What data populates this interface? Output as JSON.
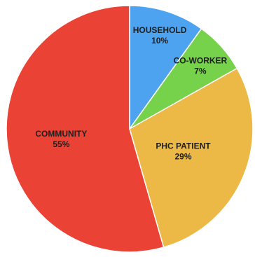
{
  "chart_data": {
    "type": "pie",
    "title": "",
    "start": "12 o'clock, clockwise",
    "slices": [
      {
        "label": "HOUSEHOLD",
        "value": 10,
        "value_label": "10%",
        "color": "#4da3f0"
      },
      {
        "label": "CO-WORKER",
        "value": 7,
        "value_label": "7%",
        "color": "#76d24a"
      },
      {
        "label": "PHC PATIENT",
        "value": 29,
        "value_label": "29%",
        "color": "#ecb946"
      },
      {
        "label": "COMMUNITY",
        "value": 55,
        "value_label": "55%",
        "color": "#ea4335"
      }
    ]
  }
}
